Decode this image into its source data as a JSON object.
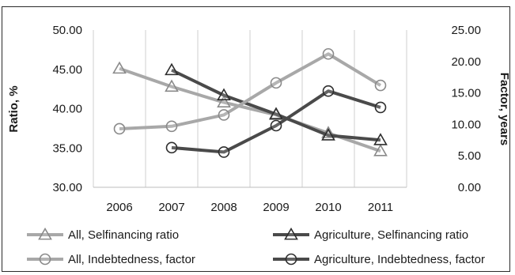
{
  "chart_data": {
    "type": "line",
    "categories": [
      "2006",
      "2007",
      "2008",
      "2009",
      "2010",
      "2011"
    ],
    "y_left": {
      "label": "Ratio, %",
      "range": [
        30,
        50
      ],
      "ticks": [
        "30.00",
        "35.00",
        "40.00",
        "45.00",
        "50.00"
      ]
    },
    "y_right": {
      "label": "Factor, years",
      "range": [
        0,
        25
      ],
      "ticks": [
        "0.00",
        "5.00",
        "10.00",
        "15.00",
        "20.00",
        "25.00"
      ]
    },
    "grid": "vertical",
    "legend_position": "bottom",
    "series": [
      {
        "name": "All, Selfinancing ratio",
        "axis": "left",
        "marker": "triangle",
        "color": "#a8a8a8",
        "values": [
          45.1,
          42.8,
          40.8,
          39.2,
          36.9,
          34.6
        ]
      },
      {
        "name": "Agriculture, Selfinancing ratio",
        "axis": "left",
        "marker": "triangle",
        "color": "#4a4a4a",
        "values": [
          null,
          44.9,
          41.7,
          39.3,
          36.6,
          36.0
        ]
      },
      {
        "name": "All, Indebtedness, factor",
        "axis": "right",
        "marker": "circle",
        "color": "#a8a8a8",
        "values": [
          9.3,
          9.7,
          11.5,
          16.6,
          21.2,
          16.2
        ]
      },
      {
        "name": "Agriculture, Indebtedness, factor",
        "axis": "right",
        "marker": "circle",
        "color": "#4a4a4a",
        "values": [
          null,
          6.3,
          5.6,
          9.8,
          15.3,
          12.7
        ]
      }
    ]
  }
}
